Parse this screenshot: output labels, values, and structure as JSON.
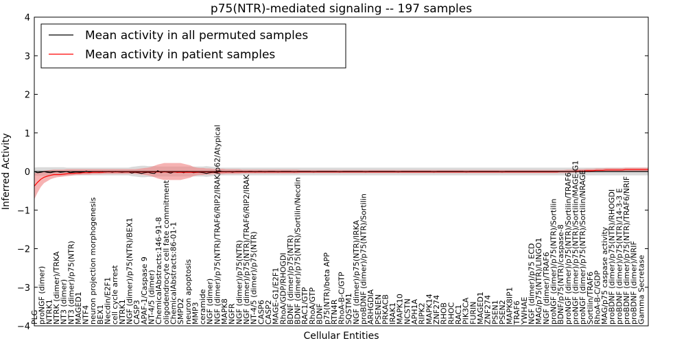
{
  "chart_data": {
    "type": "line",
    "title": "p75(NTR)-mediated signaling -- 197 samples",
    "xlabel": "Cellular Entities",
    "ylabel": "Inferred Activity",
    "ylim": [
      -4,
      4
    ],
    "yticks": [
      "4",
      "3",
      "2",
      "1",
      "0",
      "−1",
      "−2",
      "−3",
      "−4"
    ],
    "grid": false,
    "legend_position": "top-left",
    "colors": {
      "permuted": "#000000",
      "patient": "#ff0000",
      "patient_band": "#f08080",
      "permuted_band": "#bbbbbb"
    },
    "series": [
      {
        "name": "Mean activity in all permuted samples",
        "key": "permuted"
      },
      {
        "name": "Mean activity in patient samples",
        "key": "patient"
      }
    ],
    "categories": [
      "PLG",
      "proNGF (dimer)",
      "NTRK1",
      "NTRK (dimer)/TRKA",
      "NT3 (dimer)",
      "NT3 (dimer)/p75(NTR)",
      "MAGED1",
      "NTF4",
      "neuron projection morphogenesis",
      "BEX1",
      "Necdin/E2F1",
      "cell cycle arrest",
      "NTRK1",
      "NGF (dimer)/p75(NTR)/BEX1",
      "CASP3",
      "APAF-1/Caspase 9",
      "NT-4/5 (dimer)",
      "ChemicalAbstracts:146-91-8",
      "oligodendrocyte cell fate commitment",
      "ChemicalAbstracts:86-01-1",
      "SMPD2",
      "neuron apoptosis",
      "MMP3",
      "ceramide",
      "NGF (dimer)",
      "NGF (dimer)/p75(NTR)/TRAF6/RIP2/IRAK/p62/Atypical",
      "MAPK8",
      "NGFR",
      "NGF (dimer)/p75(NTR)",
      "NGF (dimer)/p75(NTR)/TRAF6/RIP2/IRAK",
      "NT-4/5 (dimer)/p75(NTR)",
      "CASP6",
      "CASP2",
      "MAGE-G1/E2F1",
      "RhoA/GDP/RHOGDI",
      "BDNF (dimer)/p75(NTR)",
      "BDNF (dimer)/p75(NTR)/Sortilin/Necdin",
      "RAC1/GTP",
      "RhoA/GTP",
      "BDNF",
      "p75(NTR)/beta APP",
      "RTN4R",
      "RhoA-B-C/GTP",
      "SQSTM1",
      "NGF (dimer)/p75(NTR)/IRKA",
      "proBDNF (dimer)/p75(NTR)/Sortilin",
      "ARHGDIA",
      "PSENEN",
      "PRKACB",
      "IRAK1",
      "MAPK10",
      "NCSTN",
      "APH1A",
      "RIPK2",
      "MAPK14",
      "ZNF274",
      "RHOB",
      "RHOC",
      "RAC1",
      "PIK3CA",
      "FURIN",
      "MAGED1",
      "ZNF274",
      "PSEN1",
      "PSEN2",
      "MAPK8IP1",
      "TRAF6",
      "YWHAE",
      "NGF (dimer)/p75 ECD",
      "MAG/p75(NTR)/LINGO1",
      "NGF (dimer)/TRAF6",
      "proNGF (dimer)/p75(NTR)/Sortilin",
      "BDNF/p75(NTR)/caspase-8",
      "proNGF (dimer)/p75(NTR)/Sortilin/TRAF6",
      "proNGF (dimer)/p75(NTR)/Sortilin/MAGE-G1",
      "proNGF (dimer)/p75(NTR)/Sortilin/NRAGE",
      "Sortilin/TRAF6",
      "RhoA-B-C/GDP",
      "MAG/p75 caspase activity",
      "proBDNF (dimer)/p75(NTR)/RHOGDI",
      "proBDNF (dimer)/p75(NTR)/14-3-3 E",
      "proBDNF (dimer)/p75(NTR)/TRAF6/NRIF",
      "proBDNF (dimer)/NRIF",
      "Gamma Secretase"
    ],
    "x": [
      0,
      1,
      2,
      3,
      4,
      5,
      6,
      7,
      8,
      9,
      10,
      11,
      12,
      13,
      14,
      15,
      16,
      17,
      18,
      19,
      20,
      21,
      22,
      23,
      24,
      25,
      26,
      27,
      28,
      29,
      30,
      31,
      32,
      33,
      34,
      35,
      36,
      37,
      38,
      39,
      40,
      41,
      42,
      43,
      44,
      45,
      46,
      47,
      48,
      49,
      50,
      51,
      52,
      53,
      54,
      55,
      56,
      57,
      58,
      59,
      60,
      61,
      62,
      63,
      64,
      65,
      66,
      67,
      68,
      69,
      70,
      71,
      72,
      73,
      74,
      75,
      76,
      77,
      78,
      79,
      80,
      81,
      82,
      83,
      84,
      85,
      86,
      87,
      88,
      89,
      90,
      91,
      92,
      93,
      94,
      95,
      96,
      97,
      98,
      99,
      100,
      101,
      102,
      103,
      104,
      105,
      106,
      107,
      108,
      109,
      110,
      111,
      112,
      113,
      114,
      115,
      116,
      117,
      118,
      119,
      120,
      121,
      122,
      123,
      124,
      125,
      126,
      127,
      128,
      129,
      130,
      131,
      132,
      133,
      134,
      135,
      136,
      137,
      138,
      139,
      140,
      141,
      142,
      143,
      144,
      145,
      146,
      147,
      148,
      149,
      150,
      151,
      152,
      153,
      154,
      155,
      156,
      157,
      158,
      159,
      160,
      161,
      162,
      163,
      164,
      165,
      166,
      167,
      168,
      169,
      170,
      171,
      172,
      173,
      174,
      175,
      176,
      177,
      178,
      179,
      180,
      181,
      182,
      183,
      184,
      185,
      186,
      187,
      188,
      189
    ],
    "patient_mean": [
      -0.38,
      -0.28,
      -0.2,
      -0.15,
      -0.12,
      -0.1,
      -0.08,
      -0.08,
      -0.08,
      -0.07,
      -0.06,
      -0.05,
      -0.05,
      -0.04,
      -0.04,
      -0.03,
      -0.03,
      -0.03,
      -0.02,
      -0.02,
      -0.02,
      -0.02,
      -0.01,
      -0.01,
      -0.01,
      -0.01,
      -0.01,
      -0.01,
      -0.01,
      -0.01,
      -0.01,
      -0.01,
      -0.01,
      -0.01,
      -0.01,
      -0.01,
      -0.01,
      -0.01,
      -0.01,
      -0.01,
      -0.01,
      -0.01,
      -0.01,
      -0.01,
      -0.02,
      -0.02,
      -0.02,
      -0.02,
      -0.02,
      -0.02,
      -0.02,
      -0.01,
      -0.01,
      -0.01,
      -0.01,
      -0.01,
      -0.01,
      -0.01,
      -0.01,
      -0.01,
      -0.01,
      -0.01,
      -0.01,
      -0.01,
      -0.01,
      -0.01,
      -0.01,
      -0.01,
      -0.01,
      -0.01,
      -0.01,
      -0.01,
      -0.01,
      -0.01,
      -0.01,
      -0.01,
      -0.01,
      -0.01,
      -0.01,
      -0.01,
      -0.01,
      -0.01,
      -0.01,
      -0.01,
      -0.01,
      -0.01,
      -0.01,
      -0.01,
      -0.01,
      -0.01,
      -0.01,
      -0.01,
      -0.01,
      -0.01,
      -0.01,
      -0.01,
      -0.01,
      -0.01,
      -0.01,
      -0.01,
      -0.01,
      -0.01,
      -0.01,
      -0.01,
      -0.01,
      -0.01,
      -0.01,
      -0.01,
      -0.01,
      -0.01,
      -0.01,
      -0.01,
      -0.01,
      -0.01,
      -0.01,
      -0.01,
      -0.01,
      -0.01,
      -0.01,
      -0.01,
      -0.01,
      -0.01,
      -0.01,
      -0.01,
      -0.01,
      -0.01,
      -0.01,
      -0.01,
      -0.01,
      -0.01,
      -0.01,
      -0.01,
      -0.01,
      -0.01,
      -0.01,
      -0.01,
      -0.01,
      -0.01,
      -0.01,
      -0.01,
      -0.01,
      -0.01,
      -0.01,
      -0.01,
      -0.01,
      -0.01,
      -0.01,
      -0.01,
      -0.01,
      -0.01,
      -0.01,
      -0.01,
      -0.01,
      -0.01,
      -0.01,
      -0.01,
      -0.01,
      -0.01,
      -0.01,
      -0.01,
      -0.01,
      -0.01,
      0.0,
      0.0,
      0.0,
      0.0,
      0.0,
      0.01,
      0.01,
      0.01,
      0.02,
      0.02,
      0.02,
      0.03,
      0.03,
      0.03,
      0.04,
      0.04,
      0.04,
      0.04,
      0.04,
      0.04,
      0.05,
      0.05,
      0.05,
      0.05,
      0.05,
      0.05,
      0.05,
      0.05
    ],
    "patient_lower": [
      -0.72,
      -0.55,
      -0.4,
      -0.3,
      -0.25,
      -0.2,
      -0.17,
      -0.15,
      -0.14,
      -0.13,
      -0.12,
      -0.11,
      -0.1,
      -0.09,
      -0.09,
      -0.08,
      -0.08,
      -0.08,
      -0.07,
      -0.07,
      -0.07,
      -0.06,
      -0.06,
      -0.06,
      -0.06,
      -0.06,
      -0.06,
      -0.06,
      -0.06,
      -0.06,
      -0.06,
      -0.06,
      -0.07,
      -0.08,
      -0.09,
      -0.1,
      -0.12,
      -0.15,
      -0.18,
      -0.2,
      -0.22,
      -0.22,
      -0.22,
      -0.22,
      -0.22,
      -0.22,
      -0.2,
      -0.18,
      -0.16,
      -0.12,
      -0.1,
      -0.09,
      -0.09,
      -0.08,
      -0.08,
      -0.07,
      -0.07,
      -0.07,
      -0.07,
      -0.06,
      -0.06,
      -0.06,
      -0.06,
      -0.06,
      -0.05,
      -0.05,
      -0.05,
      -0.05,
      -0.05,
      -0.05,
      -0.05,
      -0.05,
      -0.05,
      -0.05,
      -0.05,
      -0.05,
      -0.05,
      -0.05,
      -0.05,
      -0.05,
      -0.05,
      -0.05,
      -0.04,
      -0.04,
      -0.04,
      -0.04,
      -0.04,
      -0.04,
      -0.04,
      -0.04,
      -0.04,
      -0.04,
      -0.04,
      -0.04,
      -0.04,
      -0.04,
      -0.04,
      -0.04,
      -0.04,
      -0.04,
      -0.04,
      -0.04,
      -0.04,
      -0.04,
      -0.04,
      -0.04,
      -0.04,
      -0.04,
      -0.04,
      -0.04,
      -0.04,
      -0.04,
      -0.04,
      -0.04,
      -0.04,
      -0.04,
      -0.04,
      -0.04,
      -0.04,
      -0.04,
      -0.04,
      -0.04,
      -0.04,
      -0.04,
      -0.04,
      -0.04,
      -0.04,
      -0.04,
      -0.04,
      -0.04,
      -0.04,
      -0.04,
      -0.04,
      -0.04,
      -0.04,
      -0.04,
      -0.04,
      -0.04,
      -0.04,
      -0.04,
      -0.04,
      -0.04,
      -0.04,
      -0.04,
      -0.04,
      -0.04,
      -0.04,
      -0.04,
      -0.04,
      -0.04,
      -0.04,
      -0.04,
      -0.04,
      -0.04,
      -0.04,
      -0.04,
      -0.04,
      -0.04,
      -0.04,
      -0.04,
      -0.04,
      -0.04,
      -0.04,
      -0.04,
      -0.04,
      -0.03,
      -0.03,
      -0.03,
      -0.02,
      -0.02,
      -0.02,
      -0.02,
      -0.01,
      -0.01,
      -0.01,
      -0.01,
      0.0,
      0.0,
      0.0,
      0.0,
      0.0,
      0.0,
      0.0,
      0.0,
      0.0,
      0.0,
      0.0,
      0.0,
      0.0,
      0.0
    ],
    "patient_upper": [
      -0.05,
      -0.02,
      0.0,
      0.02,
      0.03,
      0.04,
      0.05,
      0.05,
      0.05,
      0.05,
      0.06,
      0.06,
      0.06,
      0.06,
      0.06,
      0.06,
      0.06,
      0.06,
      0.06,
      0.06,
      0.06,
      0.06,
      0.06,
      0.06,
      0.06,
      0.06,
      0.06,
      0.06,
      0.06,
      0.06,
      0.06,
      0.06,
      0.07,
      0.08,
      0.09,
      0.1,
      0.12,
      0.15,
      0.18,
      0.2,
      0.22,
      0.22,
      0.22,
      0.22,
      0.22,
      0.22,
      0.2,
      0.18,
      0.16,
      0.12,
      0.1,
      0.09,
      0.09,
      0.08,
      0.08,
      0.07,
      0.07,
      0.07,
      0.07,
      0.06,
      0.06,
      0.06,
      0.06,
      0.06,
      0.05,
      0.05,
      0.05,
      0.05,
      0.05,
      0.05,
      0.05,
      0.05,
      0.05,
      0.05,
      0.05,
      0.05,
      0.05,
      0.05,
      0.05,
      0.05,
      0.05,
      0.05,
      0.04,
      0.04,
      0.04,
      0.04,
      0.04,
      0.04,
      0.04,
      0.04,
      0.04,
      0.04,
      0.04,
      0.04,
      0.04,
      0.04,
      0.04,
      0.04,
      0.04,
      0.04,
      0.04,
      0.04,
      0.04,
      0.04,
      0.04,
      0.04,
      0.04,
      0.04,
      0.04,
      0.04,
      0.04,
      0.04,
      0.04,
      0.04,
      0.04,
      0.04,
      0.04,
      0.04,
      0.04,
      0.04,
      0.04,
      0.04,
      0.04,
      0.04,
      0.04,
      0.04,
      0.04,
      0.04,
      0.04,
      0.04,
      0.04,
      0.04,
      0.04,
      0.04,
      0.04,
      0.04,
      0.04,
      0.04,
      0.04,
      0.04,
      0.04,
      0.04,
      0.04,
      0.04,
      0.04,
      0.04,
      0.04,
      0.04,
      0.04,
      0.04,
      0.04,
      0.04,
      0.04,
      0.04,
      0.04,
      0.04,
      0.04,
      0.04,
      0.04,
      0.04,
      0.04,
      0.04,
      0.04,
      0.04,
      0.05,
      0.05,
      0.05,
      0.06,
      0.06,
      0.06,
      0.07,
      0.07,
      0.07,
      0.08,
      0.08,
      0.08,
      0.09,
      0.09,
      0.09,
      0.09,
      0.09,
      0.09,
      0.1,
      0.1,
      0.1,
      0.1,
      0.1,
      0.1,
      0.1,
      0.1
    ],
    "permuted_mean": [
      0.0,
      -0.03,
      -0.02,
      0.0,
      -0.02,
      -0.03,
      -0.01,
      0.0,
      -0.02,
      -0.01,
      0.0,
      -0.03,
      -0.02,
      -0.01,
      -0.02,
      -0.02,
      0.01,
      -0.02,
      -0.01,
      -0.01,
      -0.02,
      0.0,
      -0.01,
      0.0,
      -0.02,
      0.0,
      -0.01,
      -0.02,
      -0.01,
      -0.01,
      -0.04,
      -0.02,
      -0.03,
      -0.05,
      -0.03,
      -0.02,
      -0.04,
      -0.05,
      0.02,
      -0.03,
      0.0,
      -0.02,
      -0.04,
      -0.01,
      -0.02,
      -0.01,
      -0.03,
      0.0,
      -0.01,
      -0.03,
      -0.02,
      -0.02,
      -0.03,
      -0.05,
      -0.03,
      -0.02,
      -0.03,
      -0.01,
      0.0,
      -0.01,
      0.0,
      -0.02,
      0.0,
      0.0,
      0.0,
      -0.01,
      0.0,
      0.0,
      -0.01,
      0.0,
      0.0,
      -0.01,
      0.0,
      0.0,
      0.0,
      -0.01,
      0.0,
      0.0,
      0.0,
      0.0,
      -0.01,
      0.0,
      0.0,
      0.0,
      0.0,
      0.0,
      -0.01,
      0.0,
      0.0,
      0.0,
      0.0,
      0.0,
      0.0,
      0.0,
      -0.01,
      0.0,
      0.0,
      0.0,
      0.0,
      0.0,
      0.0,
      0.0,
      -0.01,
      0.0,
      0.0,
      0.0,
      0.0,
      0.0,
      0.0,
      0.0,
      0.0,
      0.0,
      -0.01,
      0.0,
      0.0,
      0.0,
      0.0,
      0.0,
      0.0,
      0.0,
      0.0,
      0.0,
      0.0,
      -0.01,
      0.0,
      0.0,
      0.0,
      0.0,
      0.0,
      0.0,
      0.0,
      0.0,
      0.0,
      -0.01,
      0.0,
      0.0,
      0.0,
      0.0,
      0.0,
      0.0,
      0.0,
      0.0,
      0.0,
      0.0,
      -0.01,
      0.0,
      0.0,
      0.0,
      0.0,
      0.0,
      0.0,
      0.0,
      0.0,
      0.0,
      0.0,
      0.0,
      0.0,
      0.0,
      0.0,
      0.0,
      0.0,
      0.0,
      0.0,
      0.0,
      0.0,
      0.0,
      0.0,
      0.0,
      0.0,
      0.0,
      0.0,
      0.0,
      0.0,
      0.0,
      0.0,
      0.0,
      0.0,
      0.0,
      0.0,
      0.0,
      0.0,
      0.0,
      0.0,
      0.0,
      0.0,
      0.0,
      0.0,
      0.0,
      0.0,
      0.0
    ],
    "permuted_lower": [
      -0.1,
      -0.11,
      -0.11,
      -0.11,
      -0.11,
      -0.11,
      -0.11,
      -0.11,
      -0.11,
      -0.11,
      -0.1,
      -0.1,
      -0.1,
      -0.1,
      -0.1,
      -0.1,
      -0.1,
      -0.1,
      -0.1,
      -0.1,
      -0.1,
      -0.1,
      -0.1,
      -0.1,
      -0.1,
      -0.1,
      -0.1,
      -0.1,
      -0.1,
      -0.1,
      -0.12,
      -0.13,
      -0.14,
      -0.15,
      -0.15,
      -0.14,
      -0.14,
      -0.14,
      -0.13,
      -0.13,
      -0.13,
      -0.13,
      -0.13,
      -0.13,
      -0.13,
      -0.13,
      -0.13,
      -0.13,
      -0.13,
      -0.13,
      -0.13,
      -0.13,
      -0.13,
      -0.14,
      -0.13,
      -0.12,
      -0.11,
      -0.1,
      -0.1,
      -0.1,
      -0.1,
      -0.1,
      -0.1,
      -0.1,
      -0.1,
      -0.1,
      -0.1,
      -0.1,
      -0.1,
      -0.1,
      -0.1,
      -0.1,
      -0.1,
      -0.1,
      -0.1,
      -0.1,
      -0.1,
      -0.1,
      -0.1,
      -0.1,
      -0.1,
      -0.1,
      -0.1,
      -0.1,
      -0.1,
      -0.1,
      -0.1,
      -0.1,
      -0.1,
      -0.1,
      -0.1,
      -0.1,
      -0.1,
      -0.1,
      -0.1,
      -0.1,
      -0.1,
      -0.1,
      -0.1,
      -0.1,
      -0.1,
      -0.1,
      -0.1,
      -0.1,
      -0.1,
      -0.1,
      -0.1,
      -0.1,
      -0.1,
      -0.1,
      -0.1,
      -0.1,
      -0.1,
      -0.1,
      -0.1,
      -0.1,
      -0.1,
      -0.1,
      -0.1,
      -0.1,
      -0.1,
      -0.1,
      -0.1,
      -0.1,
      -0.1,
      -0.1,
      -0.1,
      -0.1,
      -0.1,
      -0.1,
      -0.1,
      -0.1,
      -0.1,
      -0.1,
      -0.1,
      -0.1,
      -0.1,
      -0.1,
      -0.1,
      -0.1,
      -0.1,
      -0.1,
      -0.1,
      -0.1,
      -0.1,
      -0.1,
      -0.1,
      -0.1,
      -0.1,
      -0.1,
      -0.1,
      -0.1,
      -0.1,
      -0.1,
      -0.1,
      -0.1,
      -0.1,
      -0.1,
      -0.1,
      -0.1,
      -0.1,
      -0.1,
      -0.1,
      -0.1,
      -0.1,
      -0.1,
      -0.1,
      -0.1,
      -0.1,
      -0.1,
      -0.1,
      -0.1,
      -0.1,
      -0.1,
      -0.1,
      -0.1,
      -0.1,
      -0.1,
      -0.1,
      -0.1,
      -0.1,
      -0.1,
      -0.1,
      -0.1,
      -0.1,
      -0.1,
      -0.1,
      -0.1,
      -0.1,
      -0.1
    ],
    "permuted_upper": [
      0.1,
      0.11,
      0.11,
      0.11,
      0.11,
      0.11,
      0.11,
      0.11,
      0.11,
      0.11,
      0.1,
      0.1,
      0.1,
      0.1,
      0.1,
      0.1,
      0.1,
      0.1,
      0.1,
      0.1,
      0.1,
      0.1,
      0.1,
      0.1,
      0.1,
      0.1,
      0.1,
      0.1,
      0.1,
      0.1,
      0.12,
      0.13,
      0.14,
      0.15,
      0.15,
      0.14,
      0.14,
      0.14,
      0.13,
      0.13,
      0.13,
      0.13,
      0.13,
      0.13,
      0.13,
      0.13,
      0.13,
      0.13,
      0.13,
      0.13,
      0.13,
      0.13,
      0.13,
      0.14,
      0.13,
      0.12,
      0.11,
      0.1,
      0.1,
      0.1,
      0.1,
      0.1,
      0.1,
      0.1,
      0.1,
      0.1,
      0.1,
      0.1,
      0.1,
      0.1,
      0.1,
      0.1,
      0.1,
      0.1,
      0.1,
      0.1,
      0.1,
      0.1,
      0.1,
      0.1,
      0.1,
      0.1,
      0.1,
      0.1,
      0.1,
      0.1,
      0.1,
      0.1,
      0.1,
      0.1,
      0.1,
      0.1,
      0.1,
      0.1,
      0.1,
      0.1,
      0.1,
      0.1,
      0.1,
      0.1,
      0.1,
      0.1,
      0.1,
      0.1,
      0.1,
      0.1,
      0.1,
      0.1,
      0.1,
      0.1,
      0.1,
      0.1,
      0.1,
      0.1,
      0.1,
      0.1,
      0.1,
      0.1,
      0.1,
      0.1,
      0.1,
      0.1,
      0.1,
      0.1,
      0.1,
      0.1,
      0.1,
      0.1,
      0.1,
      0.1,
      0.1,
      0.1,
      0.1,
      0.1,
      0.1,
      0.1,
      0.1,
      0.1,
      0.1,
      0.1,
      0.1,
      0.1,
      0.1,
      0.1,
      0.1,
      0.1,
      0.1,
      0.1,
      0.1,
      0.1,
      0.1,
      0.1,
      0.1,
      0.1,
      0.1,
      0.1,
      0.1,
      0.1,
      0.1,
      0.1,
      0.1,
      0.1,
      0.1,
      0.1,
      0.1,
      0.1,
      0.1,
      0.1,
      0.1,
      0.1,
      0.1,
      0.1,
      0.1,
      0.1,
      0.1,
      0.1,
      0.1,
      0.1,
      0.1,
      0.1,
      0.1,
      0.1,
      0.1,
      0.1,
      0.1,
      0.1,
      0.1,
      0.1,
      0.1,
      0.1
    ]
  }
}
